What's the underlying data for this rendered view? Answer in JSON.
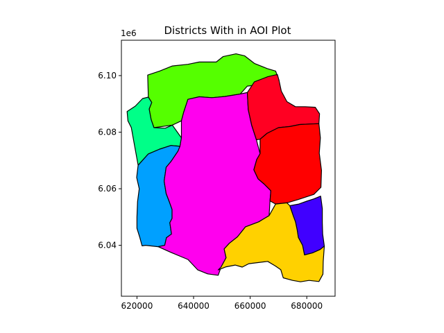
{
  "chart_data": {
    "type": "map",
    "title": "Districts With in AOI Plot",
    "xlabel": "",
    "ylabel": "",
    "y_offset_label": "1e6",
    "xlim": [
      614500,
      690000
    ],
    "ylim": [
      6022000,
      6112500
    ],
    "x_ticks": [
      620000,
      640000,
      660000,
      680000
    ],
    "x_tick_labels": [
      "620000",
      "640000",
      "660000",
      "680000"
    ],
    "y_ticks": [
      6040000,
      6060000,
      6080000,
      6100000
    ],
    "y_tick_labels": [
      "6.04",
      "6.06",
      "6.08",
      "6.10"
    ],
    "grid": false,
    "legend": "none",
    "districts": [
      {
        "color": "#55ff00",
        "polygon": [
          [
            623800,
            6100200
          ],
          [
            628000,
            6101600
          ],
          [
            632500,
            6103400
          ],
          [
            638000,
            6104000
          ],
          [
            642000,
            6104800
          ],
          [
            648000,
            6104800
          ],
          [
            650400,
            6106700
          ],
          [
            655000,
            6107700
          ],
          [
            658000,
            6107000
          ],
          [
            661500,
            6104300
          ],
          [
            666000,
            6102500
          ],
          [
            669000,
            6101600
          ],
          [
            670200,
            6098300
          ],
          [
            667500,
            6098300
          ],
          [
            662000,
            6096600
          ],
          [
            659000,
            6096300
          ],
          [
            656500,
            6093500
          ],
          [
            651000,
            6092600
          ],
          [
            646500,
            6092200
          ],
          [
            642000,
            6092500
          ],
          [
            638000,
            6091600
          ],
          [
            636500,
            6087000
          ],
          [
            635700,
            6084000
          ],
          [
            632500,
            6082500
          ],
          [
            626000,
            6081600
          ],
          [
            625000,
            6084500
          ],
          [
            624300,
            6088200
          ],
          [
            625200,
            6090500
          ],
          [
            624000,
            6092400
          ]
        ]
      },
      {
        "color": "#00ff88",
        "polygon": [
          [
            616500,
            6087300
          ],
          [
            619400,
            6089200
          ],
          [
            622000,
            6091900
          ],
          [
            624000,
            6092400
          ],
          [
            625200,
            6090500
          ],
          [
            624300,
            6088200
          ],
          [
            625000,
            6084500
          ],
          [
            626000,
            6081600
          ],
          [
            630000,
            6081400
          ],
          [
            632500,
            6082500
          ],
          [
            635700,
            6078000
          ],
          [
            635200,
            6075000
          ],
          [
            632000,
            6075300
          ],
          [
            628000,
            6074000
          ],
          [
            624000,
            6072300
          ],
          [
            620400,
            6068300
          ],
          [
            619000,
            6076000
          ],
          [
            618000,
            6081600
          ],
          [
            616800,
            6084000
          ]
        ]
      },
      {
        "color": "#00a0ff",
        "polygon": [
          [
            620400,
            6068300
          ],
          [
            624000,
            6072300
          ],
          [
            628000,
            6074000
          ],
          [
            632000,
            6075300
          ],
          [
            635200,
            6075000
          ],
          [
            634500,
            6073300
          ],
          [
            632000,
            6069600
          ],
          [
            630300,
            6067600
          ],
          [
            629600,
            6062700
          ],
          [
            630300,
            6058300
          ],
          [
            631400,
            6055500
          ],
          [
            632400,
            6052700
          ],
          [
            632400,
            6049500
          ],
          [
            631600,
            6048000
          ],
          [
            632200,
            6044000
          ],
          [
            630400,
            6042700
          ],
          [
            629800,
            6040000
          ],
          [
            627500,
            6039500
          ],
          [
            623000,
            6040000
          ],
          [
            621800,
            6039800
          ],
          [
            621000,
            6042800
          ],
          [
            620000,
            6046000
          ],
          [
            620000,
            6050000
          ],
          [
            620200,
            6055500
          ],
          [
            620800,
            6060000
          ],
          [
            619900,
            6064000
          ]
        ]
      },
      {
        "color": "#ff00ee",
        "polygon": [
          [
            635700,
            6084000
          ],
          [
            635700,
            6078000
          ],
          [
            635200,
            6075000
          ],
          [
            634500,
            6073300
          ],
          [
            632000,
            6069600
          ],
          [
            630300,
            6067600
          ],
          [
            629600,
            6062700
          ],
          [
            630300,
            6058300
          ],
          [
            631400,
            6055500
          ],
          [
            632400,
            6052700
          ],
          [
            632400,
            6049500
          ],
          [
            631600,
            6048000
          ],
          [
            632200,
            6044000
          ],
          [
            630400,
            6042700
          ],
          [
            629800,
            6040000
          ],
          [
            627500,
            6039500
          ],
          [
            632000,
            6037500
          ],
          [
            638000,
            6035000
          ],
          [
            641500,
            6031300
          ],
          [
            645000,
            6029900
          ],
          [
            648700,
            6029400
          ],
          [
            649700,
            6032300
          ],
          [
            651500,
            6035600
          ],
          [
            650800,
            6038700
          ],
          [
            652600,
            6040700
          ],
          [
            655500,
            6043000
          ],
          [
            658300,
            6046500
          ],
          [
            663000,
            6048300
          ],
          [
            666700,
            6050500
          ],
          [
            667000,
            6055700
          ],
          [
            667300,
            6059300
          ],
          [
            665000,
            6061600
          ],
          [
            662800,
            6063500
          ],
          [
            661300,
            6066700
          ],
          [
            662300,
            6070300
          ],
          [
            663500,
            6072400
          ],
          [
            662200,
            6077300
          ],
          [
            660500,
            6082500
          ],
          [
            659300,
            6088000
          ],
          [
            659000,
            6094000
          ],
          [
            656500,
            6093500
          ],
          [
            651000,
            6092600
          ],
          [
            646500,
            6092200
          ],
          [
            642000,
            6092500
          ],
          [
            638000,
            6091600
          ],
          [
            636500,
            6087000
          ]
        ]
      },
      {
        "color": "#ff0022",
        "polygon": [
          [
            659000,
            6094000
          ],
          [
            661500,
            6097800
          ],
          [
            666200,
            6099600
          ],
          [
            669600,
            6100400
          ],
          [
            670200,
            6098300
          ],
          [
            671000,
            6094500
          ],
          [
            673000,
            6090800
          ],
          [
            676000,
            6089000
          ],
          [
            679400,
            6089000
          ],
          [
            683000,
            6088800
          ],
          [
            684500,
            6086500
          ],
          [
            684300,
            6083000
          ],
          [
            681500,
            6082900
          ],
          [
            677500,
            6082700
          ],
          [
            674000,
            6082000
          ],
          [
            670000,
            6081600
          ],
          [
            666000,
            6079600
          ],
          [
            663500,
            6077500
          ],
          [
            662200,
            6077300
          ],
          [
            660500,
            6082500
          ],
          [
            659300,
            6088000
          ]
        ]
      },
      {
        "color": "#ff0000",
        "polygon": [
          [
            663500,
            6077500
          ],
          [
            666000,
            6079600
          ],
          [
            670000,
            6081600
          ],
          [
            674000,
            6082000
          ],
          [
            677500,
            6082700
          ],
          [
            681500,
            6082900
          ],
          [
            684300,
            6083000
          ],
          [
            684800,
            6078000
          ],
          [
            684400,
            6072600
          ],
          [
            685200,
            6066500
          ],
          [
            685000,
            6060500
          ],
          [
            682500,
            6058000
          ],
          [
            677000,
            6056200
          ],
          [
            673000,
            6055000
          ],
          [
            669000,
            6054600
          ],
          [
            667000,
            6055700
          ],
          [
            667300,
            6059300
          ],
          [
            665000,
            6061600
          ],
          [
            662800,
            6063500
          ],
          [
            661300,
            6066700
          ],
          [
            662300,
            6070300
          ],
          [
            663500,
            6072400
          ]
        ]
      },
      {
        "color": "#4000ff",
        "polygon": [
          [
            674000,
            6054000
          ],
          [
            677200,
            6054600
          ],
          [
            680000,
            6055600
          ],
          [
            682500,
            6056400
          ],
          [
            684900,
            6057400
          ],
          [
            685500,
            6053000
          ],
          [
            685500,
            6048000
          ],
          [
            685600,
            6044000
          ],
          [
            686200,
            6039700
          ],
          [
            684700,
            6038500
          ],
          [
            682000,
            6037300
          ],
          [
            679200,
            6036600
          ],
          [
            678500,
            6040000
          ],
          [
            677000,
            6042800
          ],
          [
            676600,
            6045500
          ],
          [
            676000,
            6048300
          ],
          [
            675200,
            6050500
          ]
        ]
      },
      {
        "color": "#ffd100",
        "polygon": [
          [
            658300,
            6046500
          ],
          [
            663000,
            6048300
          ],
          [
            666700,
            6050500
          ],
          [
            669000,
            6054600
          ],
          [
            673000,
            6055000
          ],
          [
            674000,
            6054000
          ],
          [
            675200,
            6050500
          ],
          [
            676000,
            6048300
          ],
          [
            676600,
            6045500
          ],
          [
            677000,
            6042800
          ],
          [
            678500,
            6040000
          ],
          [
            679200,
            6036600
          ],
          [
            682000,
            6037300
          ],
          [
            684700,
            6038500
          ],
          [
            686200,
            6039700
          ],
          [
            685800,
            6034300
          ],
          [
            685700,
            6029800
          ],
          [
            684300,
            6027200
          ],
          [
            680800,
            6027600
          ],
          [
            677800,
            6027100
          ],
          [
            675000,
            6027600
          ],
          [
            671700,
            6028500
          ],
          [
            670800,
            6031400
          ],
          [
            668900,
            6032700
          ],
          [
            666200,
            6034300
          ],
          [
            662000,
            6033800
          ],
          [
            659500,
            6033500
          ],
          [
            657200,
            6032300
          ],
          [
            654700,
            6033000
          ],
          [
            651500,
            6032400
          ],
          [
            648700,
            6031300
          ],
          [
            649700,
            6032300
          ],
          [
            651500,
            6035600
          ],
          [
            650800,
            6038700
          ],
          [
            652600,
            6040700
          ],
          [
            655500,
            6043000
          ]
        ]
      }
    ]
  }
}
